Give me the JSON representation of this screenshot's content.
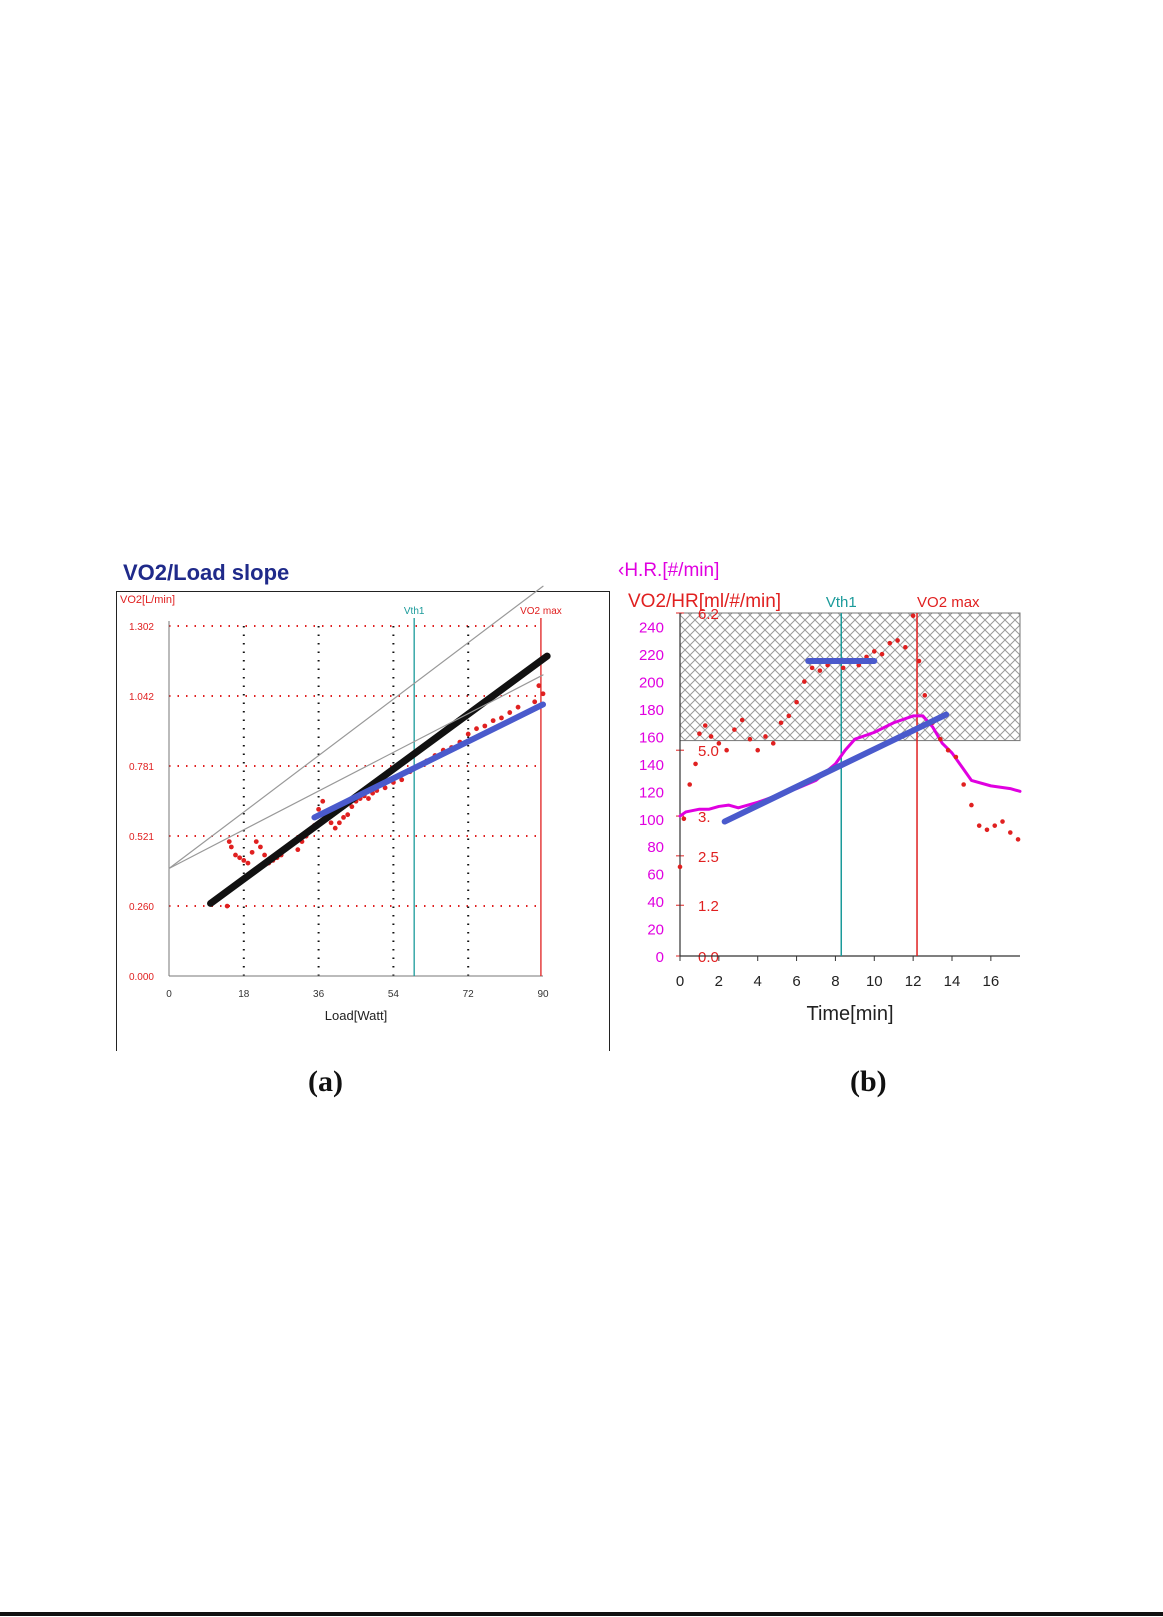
{
  "panel_a": {
    "title": "VO2/Load slope",
    "caption": "(a)"
  },
  "panel_b": {
    "caption": "(b)",
    "hr_label": "‹H.R.[#/min]",
    "vo2hr_label": "VO2/HR[ml/#/min]"
  },
  "chart_data": [
    {
      "type": "scatter",
      "title": "VO2/Load slope",
      "xlabel": "Load[Watt]",
      "ylabel": "VO2[L/min]",
      "xlim": [
        0,
        90
      ],
      "ylim": [
        0,
        1.302
      ],
      "x_ticks": [
        "0",
        "18",
        "36",
        "54",
        "72",
        "90"
      ],
      "y_ticks": [
        "0.000",
        "0.260",
        "0.521",
        "0.781",
        "1.042",
        "1.302"
      ],
      "markers": [
        {
          "label": "Vth1",
          "x": 59,
          "color": "#1a9a9a"
        },
        {
          "label": "VO2 max",
          "x": 89.5,
          "color": "#e02020"
        }
      ],
      "series": [
        {
          "kind": "points",
          "color": "#e02020",
          "x": [
            14,
            14.5,
            15,
            16,
            17,
            18,
            19,
            20,
            21,
            22,
            23,
            24,
            25,
            26,
            27,
            28,
            29,
            30,
            31,
            32,
            33,
            34,
            35,
            36,
            37,
            38,
            39,
            40,
            41,
            42,
            43,
            44,
            45,
            46,
            47,
            48,
            49,
            50,
            52,
            54,
            56,
            58,
            60,
            62,
            64,
            66,
            68,
            70,
            72,
            74,
            76,
            78,
            80,
            82,
            84,
            86,
            88,
            89,
            90
          ],
          "y": [
            0.26,
            0.5,
            0.48,
            0.45,
            0.44,
            0.43,
            0.42,
            0.46,
            0.5,
            0.48,
            0.45,
            0.42,
            0.43,
            0.44,
            0.45,
            0.47,
            0.49,
            0.5,
            0.47,
            0.5,
            0.52,
            0.54,
            0.56,
            0.62,
            0.65,
            0.6,
            0.57,
            0.55,
            0.57,
            0.59,
            0.6,
            0.63,
            0.65,
            0.66,
            0.67,
            0.66,
            0.68,
            0.69,
            0.7,
            0.72,
            0.73,
            0.76,
            0.78,
            0.8,
            0.82,
            0.84,
            0.85,
            0.87,
            0.9,
            0.92,
            0.93,
            0.95,
            0.96,
            0.98,
            1.0,
            0.98,
            1.02,
            1.08,
            1.05
          ]
        },
        {
          "kind": "line",
          "color": "#111111",
          "x": [
            10,
            91
          ],
          "y": [
            0.27,
            1.19
          ]
        },
        {
          "kind": "line",
          "color": "#4a5acc",
          "x": [
            35,
            90
          ],
          "y": [
            0.59,
            1.01
          ]
        },
        {
          "kind": "line",
          "color": "#999999",
          "x": [
            0,
            90
          ],
          "y": [
            0.4,
            1.45
          ]
        },
        {
          "kind": "line",
          "color": "#999999",
          "x": [
            0,
            90
          ],
          "y": [
            0.4,
            1.12
          ]
        }
      ]
    },
    {
      "type": "line",
      "xlabel": "Time[min]",
      "ylabel": "H.R.[#/min]",
      "xlim": [
        0,
        17.5
      ],
      "ylim": [
        0,
        250
      ],
      "x_ticks": [
        "0",
        "2",
        "4",
        "6",
        "8",
        "10",
        "12",
        "14",
        "16"
      ],
      "y_ticks_hr": [
        "0",
        "20",
        "40",
        "60",
        "80",
        "100",
        "120",
        "140",
        "160",
        "180",
        "200",
        "220",
        "240"
      ],
      "y_ticks_vo2hr": [
        "0.0",
        "1.2",
        "2.5",
        "3.",
        "5.0",
        "6.2"
      ],
      "shaded_region": {
        "ymin": 157,
        "ymax": 250
      },
      "markers": [
        {
          "label": "Vth1",
          "x": 8.3,
          "color": "#1a9a9a"
        },
        {
          "label": "VO2 max",
          "x": 12.2,
          "color": "#e02020"
        }
      ],
      "series": [
        {
          "name": "H.R.[#/min]",
          "kind": "line",
          "color": "#e000e0",
          "x": [
            0,
            0.3,
            1,
            1.5,
            2,
            2.5,
            3,
            4,
            5,
            6,
            7,
            8,
            8.5,
            9,
            10,
            11,
            12,
            12.5,
            13,
            13.5,
            14,
            14.5,
            15,
            16,
            17,
            17.5
          ],
          "y": [
            102,
            105,
            107,
            107,
            109,
            110,
            108,
            112,
            117,
            122,
            128,
            140,
            150,
            158,
            163,
            170,
            175,
            175,
            167,
            155,
            148,
            138,
            128,
            124,
            122,
            120
          ]
        },
        {
          "name": "VO2/HR[ml/#/min]",
          "kind": "points",
          "color": "#e02020",
          "x": [
            0,
            0.2,
            0.5,
            0.8,
            1,
            1.3,
            1.6,
            2,
            2.4,
            2.8,
            3.2,
            3.6,
            4,
            4.4,
            4.8,
            5.2,
            5.6,
            6,
            6.4,
            6.8,
            7.2,
            7.6,
            8,
            8.4,
            8.8,
            9.2,
            9.6,
            10,
            10.4,
            10.8,
            11.2,
            11.6,
            12,
            12.3,
            12.6,
            13,
            13.4,
            13.8,
            14.2,
            14.6,
            15,
            15.4,
            15.8,
            16.2,
            16.6,
            17,
            17.4
          ],
          "y": [
            65,
            100,
            125,
            140,
            162,
            168,
            160,
            155,
            150,
            165,
            172,
            158,
            150,
            160,
            155,
            170,
            175,
            185,
            200,
            210,
            208,
            212,
            215,
            210,
            215,
            212,
            218,
            222,
            220,
            228,
            230,
            225,
            248,
            215,
            190,
            170,
            158,
            150,
            145,
            125,
            110,
            95,
            92,
            95,
            98,
            90,
            85
          ]
        },
        {
          "kind": "line",
          "color": "#4a5acc",
          "x": [
            2.3,
            13.7
          ],
          "y": [
            98,
            176
          ]
        },
        {
          "kind": "line",
          "color": "#4a5acc",
          "x": [
            6.6,
            10
          ],
          "y": [
            215,
            215
          ]
        }
      ]
    }
  ]
}
